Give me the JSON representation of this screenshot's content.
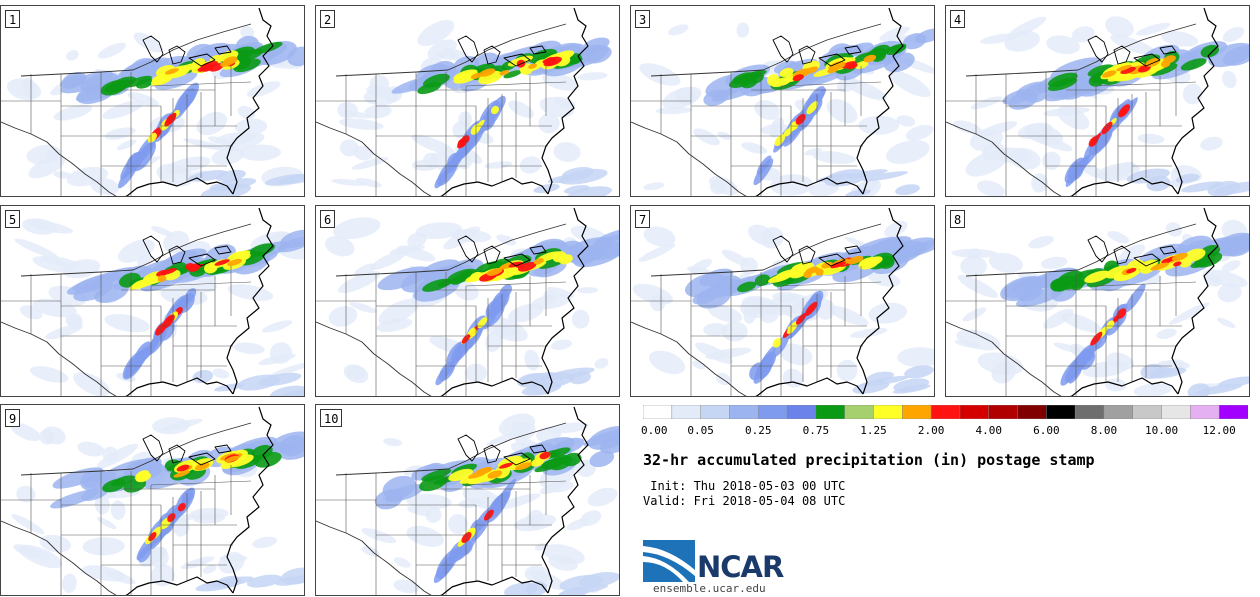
{
  "members": [
    "1",
    "2",
    "3",
    "4",
    "5",
    "6",
    "7",
    "8",
    "9",
    "10"
  ],
  "legend": {
    "colors": [
      "#ffffff",
      "#e3ebf9",
      "#c5d5f4",
      "#9cb4f0",
      "#7f9bee",
      "#6b82ea",
      "#0a9a14",
      "#a6cf6e",
      "#ffff28",
      "#ffa500",
      "#ff1212",
      "#d40000",
      "#b00000",
      "#800000",
      "#000000",
      "#6e6e6e",
      "#a0a0a0",
      "#c8c8c8",
      "#e6e6e6",
      "#e4b0f2",
      "#a200ff"
    ],
    "tick_labels": [
      "0.00",
      "0.05",
      "0.25",
      "0.75",
      "1.25",
      "2.00",
      "4.00",
      "6.00",
      "8.00",
      "10.00",
      "12.00"
    ]
  },
  "title": "32-hr accumulated precipitation (in) postage stamp",
  "init": " Init: Thu 2018-05-03 00 UTC",
  "valid": "Valid: Fri 2018-05-04 08 UTC",
  "logo": {
    "text": "NCAR",
    "url": "ensemble.ucar.edu"
  }
}
